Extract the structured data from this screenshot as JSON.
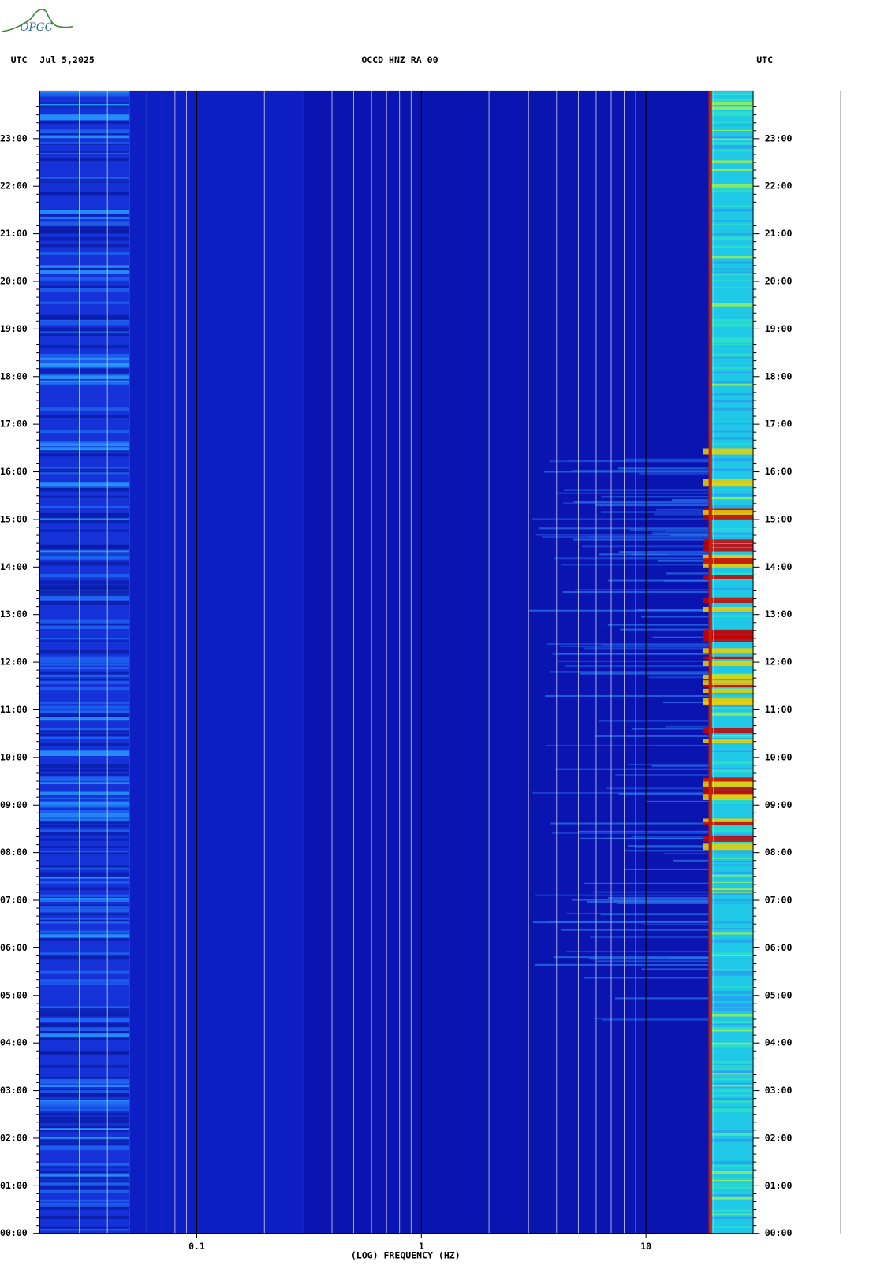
{
  "header": {
    "logo": "OPGC"
  },
  "chart_data": {
    "type": "spectrogram",
    "title": "OCCD HNZ RA 00",
    "time_zone": "UTC",
    "date": "Jul 5,2025",
    "x_label": "(LOG) FREQUENCY (HZ)",
    "xscale": "log",
    "xlim": [
      0.02,
      30
    ],
    "xticks": [
      0.1,
      1,
      10
    ],
    "ylim": [
      0,
      24
    ],
    "yticks": [
      {
        "value": 0,
        "label": "00:00"
      },
      {
        "value": 1,
        "label": "01:00"
      },
      {
        "value": 2,
        "label": "02:00"
      },
      {
        "value": 3,
        "label": "03:00"
      },
      {
        "value": 4,
        "label": "04:00"
      },
      {
        "value": 5,
        "label": "05:00"
      },
      {
        "value": 6,
        "label": "06:00"
      },
      {
        "value": 7,
        "label": "07:00"
      },
      {
        "value": 8,
        "label": "08:00"
      },
      {
        "value": 9,
        "label": "09:00"
      },
      {
        "value": 10,
        "label": "10:00"
      },
      {
        "value": 11,
        "label": "11:00"
      },
      {
        "value": 12,
        "label": "12:00"
      },
      {
        "value": 13,
        "label": "13:00"
      },
      {
        "value": 14,
        "label": "14:00"
      },
      {
        "value": 15,
        "label": "15:00"
      },
      {
        "value": 16,
        "label": "16:00"
      },
      {
        "value": 17,
        "label": "17:00"
      },
      {
        "value": 18,
        "label": "18:00"
      },
      {
        "value": 19,
        "label": "19:00"
      },
      {
        "value": 20,
        "label": "20:00"
      },
      {
        "value": 21,
        "label": "21:00"
      },
      {
        "value": 22,
        "label": "22:00"
      },
      {
        "value": 23,
        "label": "23:00"
      }
    ]
  }
}
